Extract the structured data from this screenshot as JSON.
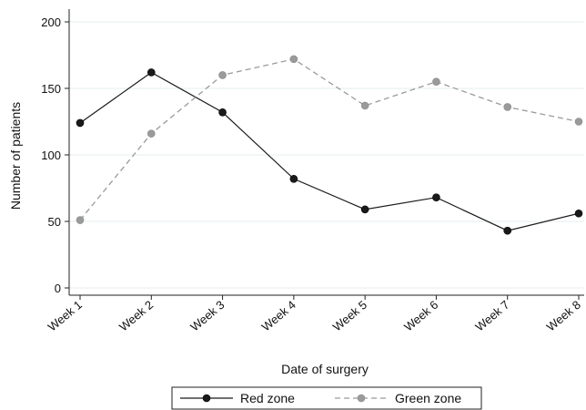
{
  "chart_data": {
    "type": "line",
    "title": "",
    "xlabel": "Date of surgery",
    "ylabel": "Number of patients",
    "categories": [
      "Week 1",
      "Week 2",
      "Week 3",
      "Week 4",
      "Week 5",
      "Week 6",
      "Week 7",
      "Week 8"
    ],
    "ylim": [
      0,
      200
    ],
    "yticks": [
      0,
      50,
      100,
      150,
      200
    ],
    "grid": "horizontal",
    "legend_position": "bottom",
    "series": [
      {
        "name": "Red zone",
        "values": [
          124,
          162,
          132,
          82,
          59,
          68,
          43,
          56
        ],
        "color": "#1a1a1a",
        "dash": "solid"
      },
      {
        "name": "Green zone",
        "values": [
          51,
          116,
          160,
          172,
          137,
          155,
          136,
          125
        ],
        "color": "#9a9a9a",
        "dash": "dashed"
      }
    ]
  }
}
